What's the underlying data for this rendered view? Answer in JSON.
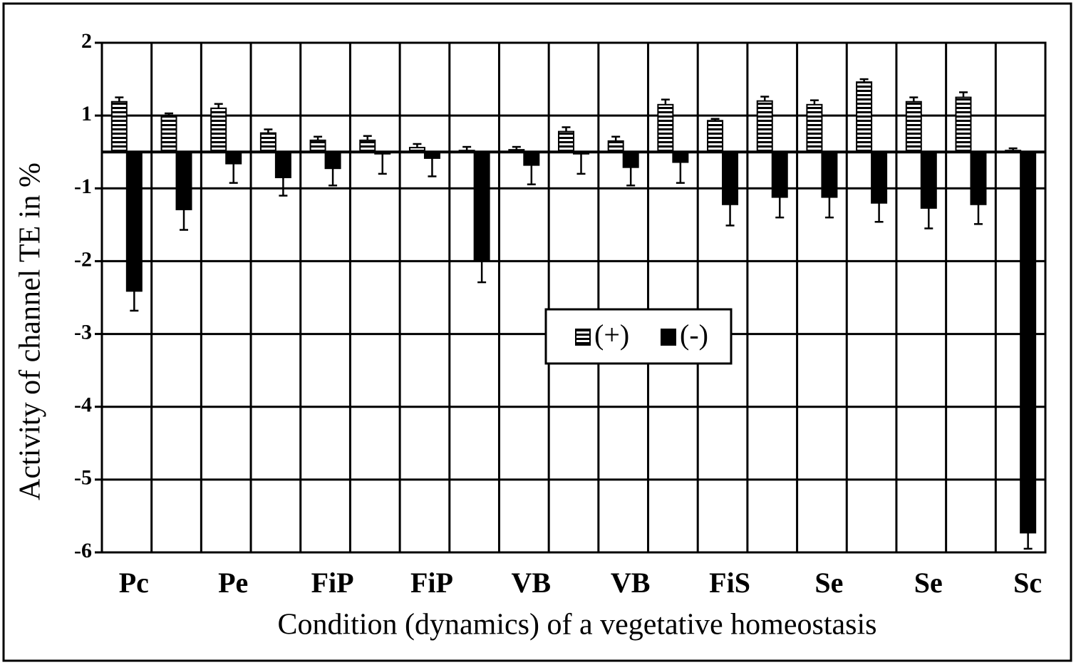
{
  "chart_data": {
    "type": "bar",
    "y_label": "Activity of channel TE in %",
    "x_label": "Condition (dynamics) of a vegetative homeostasis",
    "categories": [
      "Pc",
      null,
      "Pe",
      null,
      "FiP",
      null,
      "FiP",
      null,
      "VB",
      null,
      "VB",
      null,
      "FiS",
      null,
      "Se",
      null,
      "Se",
      null,
      "Sc"
    ],
    "series": [
      {
        "name": "(+)",
        "color": "#000000",
        "pattern": "horizontal-stripes",
        "values": [
          1.19,
          1.0,
          1.1,
          0.52,
          0.32,
          0.32,
          0.12,
          0.04,
          0.06,
          0.56,
          0.3,
          1.15,
          0.86,
          1.2,
          1.15,
          1.46,
          1.19,
          1.25,
          0.04
        ],
        "errors": [
          0.06,
          0.03,
          0.06,
          0.1,
          0.1,
          0.12,
          0.1,
          0.1,
          0.08,
          0.12,
          0.12,
          0.07,
          0.05,
          0.06,
          0.06,
          0.04,
          0.06,
          0.07,
          0.06
        ]
      },
      {
        "name": "(-)",
        "color": "#000000",
        "values": [
          -2.41,
          -1.29,
          -0.32,
          -0.7,
          -0.45,
          -0.05,
          -0.17,
          -2.0,
          -0.36,
          -0.05,
          -0.42,
          -0.28,
          -1.22,
          -1.12,
          -1.12,
          -1.2,
          -1.27,
          -1.22,
          -5.73
        ],
        "errors": [
          0.27,
          0.28,
          0.53,
          0.4,
          0.47,
          0.55,
          0.5,
          0.29,
          0.53,
          0.55,
          0.5,
          0.57,
          0.29,
          0.28,
          0.28,
          0.26,
          0.28,
          0.27,
          0.22
        ]
      }
    ],
    "ylim": [
      -6,
      2
    ],
    "yticks": [
      2,
      1,
      -1,
      -2,
      -3,
      -4,
      -5,
      -6
    ],
    "grid": true,
    "legend": "center"
  }
}
